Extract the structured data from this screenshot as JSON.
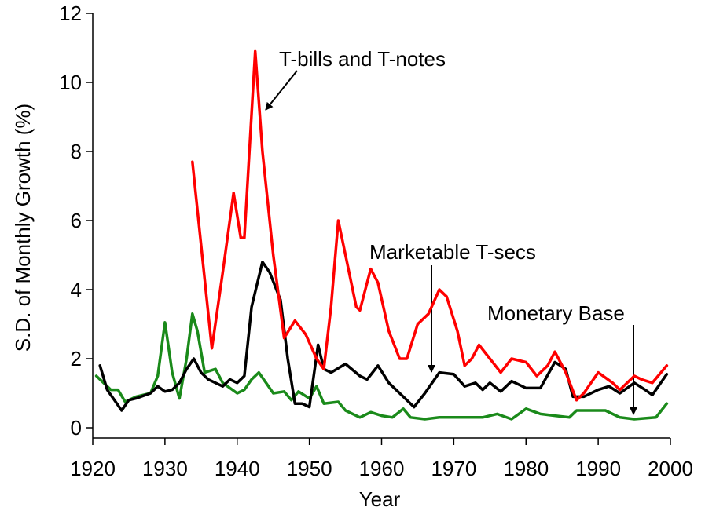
{
  "chart_data": {
    "type": "line",
    "x_label": "Year",
    "y_label": "S.D. of Monthly Growth (%)",
    "xlim": [
      1920,
      2000
    ],
    "xticks": [
      1920,
      1930,
      1940,
      1950,
      1960,
      1970,
      1980,
      1990,
      2000
    ],
    "ylim": [
      0,
      12
    ],
    "yticks": [
      0,
      2,
      4,
      6,
      8,
      10,
      12
    ],
    "series": [
      {
        "name": "T-bills and T-notes",
        "color": "#ff0000",
        "x": [
          1933.8,
          1936.5,
          1938,
          1939.5,
          1940.5,
          1941,
          1942.5,
          1943.5,
          1945,
          1946.5,
          1948,
          1949.5,
          1951,
          1952,
          1953,
          1954,
          1955,
          1956.5,
          1957,
          1958.5,
          1959.5,
          1961,
          1962.5,
          1963.5,
          1965,
          1966.5,
          1968,
          1969,
          1970.5,
          1971.5,
          1972.5,
          1973.5,
          1975,
          1976.5,
          1978,
          1980,
          1981.5,
          1983,
          1984,
          1985.5,
          1987,
          1988,
          1990,
          1992,
          1993,
          1995,
          1996,
          1997.5,
          1999.5
        ],
        "values": [
          7.7,
          2.3,
          4.5,
          6.8,
          5.5,
          5.5,
          10.9,
          8,
          5,
          2.6,
          3.1,
          2.7,
          2.0,
          1.7,
          3.5,
          6.0,
          5,
          3.5,
          3.4,
          4.6,
          4.2,
          2.8,
          2.0,
          2.0,
          3.0,
          3.3,
          4.0,
          3.8,
          2.8,
          1.8,
          2.0,
          2.4,
          2.0,
          1.6,
          2.0,
          1.9,
          1.5,
          1.8,
          2.2,
          1.6,
          0.8,
          1.0,
          1.6,
          1.3,
          1.1,
          1.5,
          1.4,
          1.3,
          1.8
        ]
      },
      {
        "name": "Marketable T-secs",
        "color": "#000000",
        "x": [
          1921,
          1922,
          1923,
          1924,
          1925,
          1926,
          1928,
          1929,
          1930,
          1931,
          1932,
          1933,
          1934,
          1935,
          1936,
          1937,
          1938,
          1939,
          1940,
          1941,
          1942,
          1943.5,
          1944.5,
          1946,
          1947,
          1948,
          1949,
          1950,
          1951.2,
          1952,
          1953,
          1955,
          1957,
          1958,
          1959.5,
          1961,
          1963,
          1964.5,
          1966,
          1968,
          1970,
          1971.5,
          1973,
          1974,
          1975,
          1976.5,
          1978,
          1980,
          1982,
          1984,
          1985.5,
          1986.5,
          1988,
          1990,
          1991.5,
          1993,
          1995,
          1996.5,
          1997.5,
          1999.5
        ],
        "values": [
          1.8,
          1.1,
          0.8,
          0.5,
          0.8,
          0.85,
          1.0,
          1.2,
          1.05,
          1.1,
          1.3,
          1.7,
          2.0,
          1.6,
          1.4,
          1.3,
          1.2,
          1.4,
          1.3,
          1.5,
          3.5,
          4.8,
          4.5,
          3.7,
          2.0,
          0.7,
          0.7,
          0.6,
          2.4,
          1.7,
          1.6,
          1.85,
          1.5,
          1.4,
          1.8,
          1.3,
          0.9,
          0.6,
          1.0,
          1.6,
          1.55,
          1.2,
          1.3,
          1.1,
          1.3,
          1.05,
          1.35,
          1.15,
          1.15,
          1.9,
          1.7,
          0.9,
          0.9,
          1.1,
          1.2,
          1.0,
          1.3,
          1.1,
          0.95,
          1.55
        ]
      },
      {
        "name": "Monetary Base",
        "color": "#1a8a1a",
        "x": [
          1920.5,
          1921.5,
          1922.5,
          1923.5,
          1924.5,
          1926,
          1928,
          1929,
          1930,
          1931,
          1932,
          1933,
          1933.8,
          1934.5,
          1935.5,
          1937,
          1938,
          1940,
          1941,
          1942,
          1943,
          1944,
          1945,
          1946.5,
          1947.5,
          1948.5,
          1950,
          1951,
          1952,
          1954,
          1955,
          1957,
          1958.5,
          1960,
          1961.5,
          1963,
          1964,
          1966,
          1968,
          1970,
          1972,
          1974,
          1976,
          1978,
          1980,
          1982,
          1984,
          1986,
          1987,
          1989,
          1991,
          1993,
          1995,
          1998,
          1999.5
        ],
        "values": [
          1.5,
          1.3,
          1.1,
          1.1,
          0.75,
          0.9,
          1.0,
          1.5,
          3.05,
          1.6,
          0.85,
          2.0,
          3.3,
          2.8,
          1.6,
          1.7,
          1.3,
          1.0,
          1.1,
          1.4,
          1.6,
          1.3,
          1.0,
          1.05,
          0.8,
          1.05,
          0.85,
          1.2,
          0.7,
          0.75,
          0.5,
          0.3,
          0.45,
          0.35,
          0.3,
          0.55,
          0.3,
          0.25,
          0.3,
          0.3,
          0.3,
          0.3,
          0.4,
          0.25,
          0.55,
          0.4,
          0.35,
          0.3,
          0.5,
          0.5,
          0.5,
          0.3,
          0.25,
          0.3,
          0.7
        ]
      }
    ],
    "annotations": [
      "T-bills and T-notes",
      "Marketable T-secs",
      "Monetary Base"
    ]
  }
}
